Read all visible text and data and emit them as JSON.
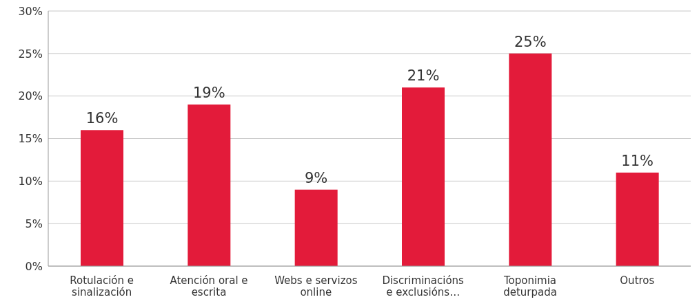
{
  "chart_data": {
    "type": "bar",
    "categories": [
      "Rotulación e sinalización",
      "Atención oral e escrita",
      "Webs e servizos online",
      "Discriminacións e exclusións…",
      "Toponimia deturpada",
      "Outros"
    ],
    "values": [
      16,
      19,
      9,
      21,
      25,
      11
    ],
    "value_labels": [
      "16%",
      "19%",
      "9%",
      "21%",
      "25%",
      "11%"
    ],
    "color": "#e31b3a",
    "ylim": [
      0,
      30
    ],
    "yticks": [
      {
        "value": 0,
        "label": "0%"
      },
      {
        "value": 5,
        "label": "5%"
      },
      {
        "value": 10,
        "label": "10%"
      },
      {
        "value": 15,
        "label": "15%"
      },
      {
        "value": 20,
        "label": "20%"
      },
      {
        "value": 25,
        "label": "25%"
      },
      {
        "value": 30,
        "label": "30%"
      }
    ],
    "grid": "y"
  }
}
